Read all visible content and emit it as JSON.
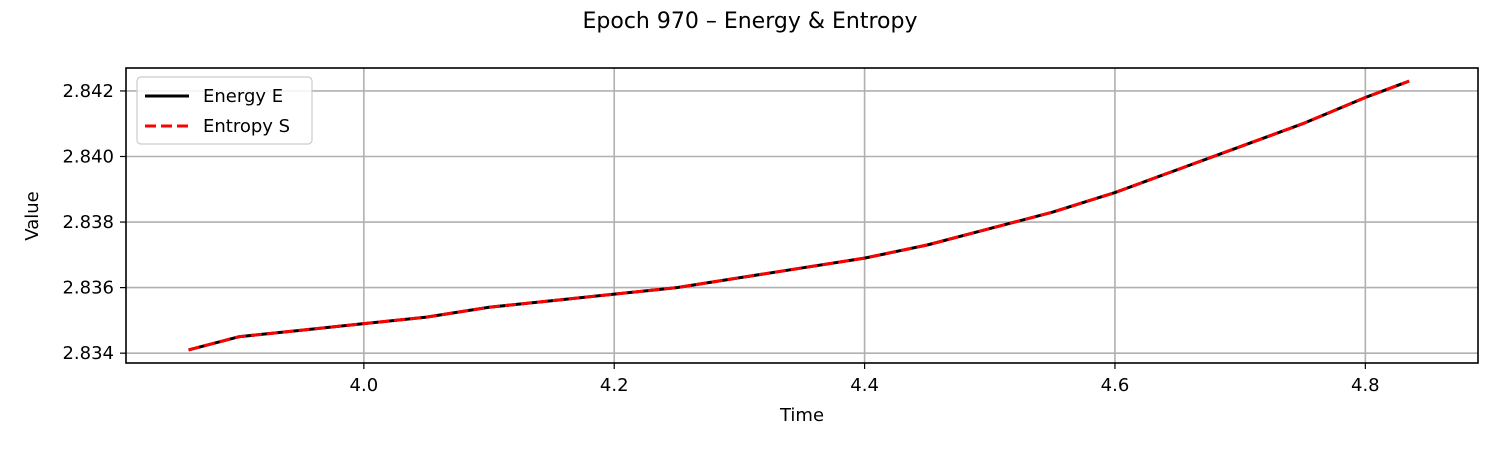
{
  "colors": {
    "energy": "#000000",
    "entropy": "#ff0000",
    "grid": "#b0b0b0",
    "background": "#ffffff"
  },
  "chart_data": {
    "type": "line",
    "title": "Epoch 970 – Energy & Entropy",
    "xlabel": "Time",
    "ylabel": "Value",
    "xlim": [
      3.81,
      4.89
    ],
    "ylim": [
      2.8337,
      2.8427
    ],
    "xticks": [
      4.0,
      4.2,
      4.4,
      4.6,
      4.8
    ],
    "xtick_labels": [
      "4.0",
      "4.2",
      "4.4",
      "4.6",
      "4.8"
    ],
    "yticks": [
      2.834,
      2.836,
      2.838,
      2.84,
      2.842
    ],
    "ytick_labels": [
      "2.834",
      "2.836",
      "2.838",
      "2.840",
      "2.842"
    ],
    "grid": true,
    "legend_position": "top-left",
    "series": [
      {
        "name": "Energy E",
        "style": "solid",
        "color": "#000000",
        "x": [
          3.86,
          3.9,
          3.95,
          4.0,
          4.05,
          4.1,
          4.15,
          4.2,
          4.25,
          4.3,
          4.35,
          4.4,
          4.45,
          4.5,
          4.55,
          4.6,
          4.65,
          4.7,
          4.75,
          4.8,
          4.835
        ],
        "y": [
          2.8341,
          2.8345,
          2.8347,
          2.8349,
          2.8351,
          2.8354,
          2.8356,
          2.8358,
          2.836,
          2.8363,
          2.8366,
          2.8369,
          2.8373,
          2.8378,
          2.8383,
          2.8389,
          2.8396,
          2.8403,
          2.841,
          2.8418,
          2.8423
        ]
      },
      {
        "name": "Entropy S",
        "style": "dashed",
        "color": "#ff0000",
        "x": [
          3.86,
          3.9,
          3.95,
          4.0,
          4.05,
          4.1,
          4.15,
          4.2,
          4.25,
          4.3,
          4.35,
          4.4,
          4.45,
          4.5,
          4.55,
          4.6,
          4.65,
          4.7,
          4.75,
          4.8,
          4.835
        ],
        "y": [
          2.8341,
          2.8345,
          2.8347,
          2.8349,
          2.8351,
          2.8354,
          2.8356,
          2.8358,
          2.836,
          2.8363,
          2.8366,
          2.8369,
          2.8373,
          2.8378,
          2.8383,
          2.8389,
          2.8396,
          2.8403,
          2.841,
          2.8418,
          2.8423
        ]
      }
    ]
  }
}
